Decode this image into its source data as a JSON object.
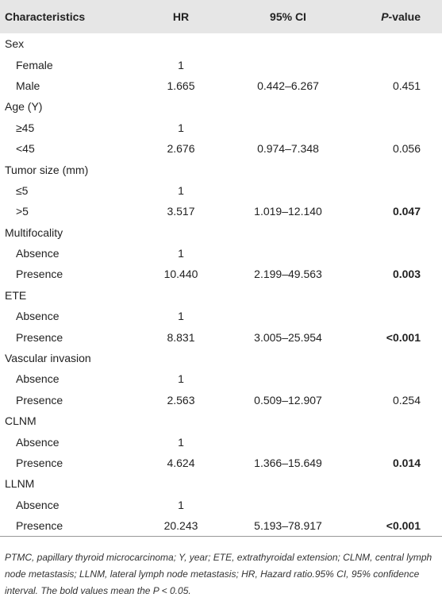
{
  "table": {
    "headers": {
      "characteristics": "Characteristics",
      "hr": "HR",
      "ci": "95% CI",
      "p_italic": "P",
      "p_rest": "-value"
    },
    "rows": [
      {
        "type": "category",
        "label": "Sex"
      },
      {
        "type": "item",
        "label": "Female",
        "hr": "1",
        "ci": "",
        "p": "",
        "bold": false
      },
      {
        "type": "item",
        "label": "Male",
        "hr": "1.665",
        "ci": "0.442–6.267",
        "p": "0.451",
        "bold": false
      },
      {
        "type": "category",
        "label": "Age (Y)"
      },
      {
        "type": "item",
        "label": "≥45",
        "hr": "1",
        "ci": "",
        "p": "",
        "bold": false
      },
      {
        "type": "item",
        "label": "<45",
        "hr": "2.676",
        "ci": "0.974–7.348",
        "p": "0.056",
        "bold": false
      },
      {
        "type": "category",
        "label": "Tumor size (mm)"
      },
      {
        "type": "item",
        "label": "≤5",
        "hr": "1",
        "ci": "",
        "p": "",
        "bold": false
      },
      {
        "type": "item",
        "label": ">5",
        "hr": "3.517",
        "ci": "1.019–12.140",
        "p": "0.047",
        "bold": true
      },
      {
        "type": "category",
        "label": "Multifocality"
      },
      {
        "type": "item",
        "label": "Absence",
        "hr": "1",
        "ci": "",
        "p": "",
        "bold": false
      },
      {
        "type": "item",
        "label": "Presence",
        "hr": "10.440",
        "ci": "2.199–49.563",
        "p": "0.003",
        "bold": true
      },
      {
        "type": "category",
        "label": "ETE"
      },
      {
        "type": "item",
        "label": "Absence",
        "hr": "1",
        "ci": "",
        "p": "",
        "bold": false
      },
      {
        "type": "item",
        "label": "Presence",
        "hr": "8.831",
        "ci": "3.005–25.954",
        "p": "<0.001",
        "bold": true
      },
      {
        "type": "category",
        "label": "Vascular invasion"
      },
      {
        "type": "item",
        "label": "Absence",
        "hr": "1",
        "ci": "",
        "p": "",
        "bold": false
      },
      {
        "type": "item",
        "label": "Presence",
        "hr": "2.563",
        "ci": "0.509–12.907",
        "p": "0.254",
        "bold": false
      },
      {
        "type": "category",
        "label": "CLNM"
      },
      {
        "type": "item",
        "label": "Absence",
        "hr": "1",
        "ci": "",
        "p": "",
        "bold": false
      },
      {
        "type": "item",
        "label": "Presence",
        "hr": "4.624",
        "ci": "1.366–15.649",
        "p": "0.014",
        "bold": true
      },
      {
        "type": "category",
        "label": "LLNM"
      },
      {
        "type": "item",
        "label": "Absence",
        "hr": "1",
        "ci": "",
        "p": "",
        "bold": false
      },
      {
        "type": "item",
        "label": "Presence",
        "hr": "20.243",
        "ci": "5.193–78.917",
        "p": "<0.001",
        "bold": true
      }
    ]
  },
  "footnote": "PTMC, papillary thyroid microcarcinoma; Y, year; ETE, extrathyroidal extension; CLNM, central lymph node metastasis; LLNM, lateral lymph node metastasis; HR, Hazard ratio.95% CI, 95% confidence interval. The bold values mean the P < 0.05."
}
